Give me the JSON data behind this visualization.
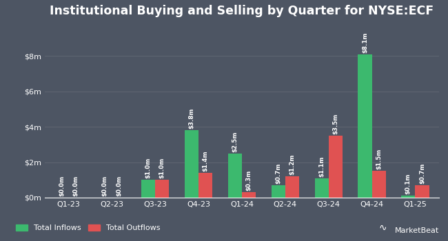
{
  "title": "Institutional Buying and Selling by Quarter for NYSE:ECF",
  "categories": [
    "Q1-23",
    "Q2-23",
    "Q3-23",
    "Q4-23",
    "Q1-24",
    "Q2-24",
    "Q3-24",
    "Q4-24",
    "Q1-25"
  ],
  "inflows": [
    0.0,
    0.0,
    1.0,
    3.8,
    2.5,
    0.7,
    1.1,
    8.1,
    0.1
  ],
  "outflows": [
    0.0,
    0.0,
    1.0,
    1.4,
    0.3,
    1.2,
    3.5,
    1.5,
    0.7
  ],
  "inflow_labels": [
    "$0.0m",
    "$0.0m",
    "$1.0m",
    "$3.8m",
    "$2.5m",
    "$0.7m",
    "$1.1m",
    "$8.1m",
    "$0.1m"
  ],
  "outflow_labels": [
    "$0.0m",
    "$0.0m",
    "$1.0m",
    "$1.4m",
    "$0.3m",
    "$1.2m",
    "$3.5m",
    "$1.5m",
    "$0.7m"
  ],
  "inflow_color": "#3cb96e",
  "outflow_color": "#e05252",
  "background_color": "#4d5563",
  "plot_bg_color": "#4d5563",
  "text_color": "#ffffff",
  "grid_color": "#606672",
  "ytick_labels": [
    "$0m",
    "$2m",
    "$4m",
    "$6m",
    "$8m"
  ],
  "ytick_values": [
    0,
    2,
    4,
    6,
    8
  ],
  "ylim": [
    0,
    9.8
  ],
  "bar_width": 0.32,
  "legend_inflow": "Total Inflows",
  "legend_outflow": "Total Outflows",
  "title_fontsize": 12.5,
  "label_fontsize": 6.2,
  "tick_fontsize": 8,
  "legend_fontsize": 8
}
